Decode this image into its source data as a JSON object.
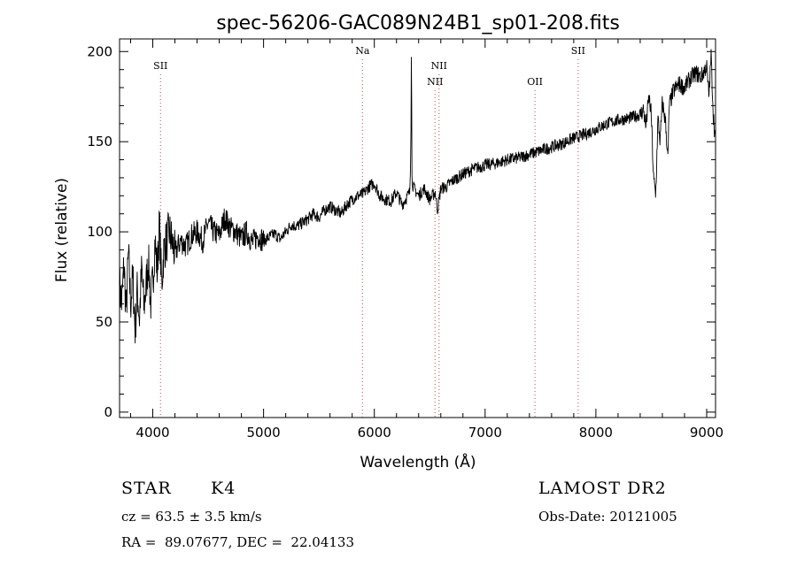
{
  "chart_data": {
    "type": "line",
    "title": "spec-56206-GAC089N24B1_sp01-208.fits",
    "xlabel": "Wavelength (Å)",
    "ylabel": "Flux (relative)",
    "xlim": [
      3700,
      9080
    ],
    "ylim": [
      -3,
      207
    ],
    "x_ticks": [
      4000,
      5000,
      6000,
      7000,
      8000,
      9000
    ],
    "y_ticks": [
      0,
      50,
      100,
      150,
      200
    ],
    "grid": false,
    "series": [
      {
        "x": [
          3700,
          3720,
          3740,
          3760,
          3780,
          3800,
          3820,
          3840,
          3860,
          3880,
          3900,
          3920,
          3940,
          3960,
          3980,
          4000,
          4020,
          4040,
          4060,
          4080,
          4100,
          4150,
          4200,
          4250,
          4300,
          4350,
          4400,
          4450,
          4500,
          4550,
          4600,
          4650,
          4700,
          4750,
          4800,
          4850,
          4900,
          4950,
          5000,
          5050,
          5100,
          5150,
          5200,
          5250,
          5300,
          5350,
          5400,
          5450,
          5500,
          5550,
          5600,
          5650,
          5700,
          5750,
          5800,
          5850,
          5900,
          5950,
          6000,
          6050,
          6100,
          6150,
          6200,
          6250,
          6300,
          6320,
          6330,
          6335,
          6340,
          6350,
          6400,
          6450,
          6500,
          6550,
          6570,
          6600,
          6650,
          6700,
          6800,
          6900,
          7000,
          7100,
          7200,
          7300,
          7400,
          7500,
          7600,
          7700,
          7800,
          7900,
          8000,
          8100,
          8200,
          8300,
          8400,
          8430,
          8450,
          8480,
          8500,
          8520,
          8540,
          8560,
          8580,
          8600,
          8630,
          8650,
          8662,
          8700,
          8750,
          8800,
          8850,
          8900,
          8950,
          9000,
          9020,
          9040,
          9060,
          9080
        ],
        "values": [
          70,
          60,
          82,
          55,
          88,
          60,
          75,
          45,
          68,
          52,
          80,
          58,
          70,
          85,
          60,
          72,
          95,
          78,
          105,
          70,
          90,
          100,
          88,
          95,
          92,
          98,
          100,
          95,
          105,
          100,
          98,
          108,
          102,
          100,
          96,
          100,
          94,
          98,
          95,
          97,
          99,
          96,
          100,
          104,
          103,
          105,
          107,
          110,
          108,
          112,
          114,
          112,
          110,
          115,
          118,
          120,
          121,
          125,
          127,
          120,
          118,
          117,
          122,
          115,
          120,
          122,
          150,
          197,
          130,
          125,
          120,
          124,
          118,
          122,
          112,
          124,
          125,
          128,
          132,
          135,
          137,
          138,
          140,
          141,
          143,
          145,
          147,
          149,
          152,
          154,
          157,
          160,
          162,
          163,
          165,
          168,
          158,
          175,
          165,
          130,
          120,
          163,
          150,
          172,
          160,
          140,
          170,
          178,
          182,
          180,
          185,
          188,
          186,
          192,
          175,
          198,
          165,
          150
        ]
      }
    ],
    "emission_lines": [
      {
        "label": "SII",
        "wavelength": 4070,
        "label_row": 1
      },
      {
        "label": "Na",
        "wavelength": 5893,
        "label_row": 0
      },
      {
        "label": "NII",
        "wavelength": 6548,
        "label_row": 2
      },
      {
        "label": "NII",
        "wavelength": 6584,
        "label_row": 1
      },
      {
        "label": "OII",
        "wavelength": 7450,
        "label_row": 2
      },
      {
        "label": "SII",
        "wavelength": 7840,
        "label_row": 0
      }
    ]
  },
  "footer": {
    "object_class": "STAR",
    "subclass": "K4",
    "survey": "LAMOST DR2",
    "redshift_line": "cz = 63.5 ± 3.5 km/s",
    "obs_date": "Obs-Date: 20121005",
    "coords": "RA =  89.07677, DEC =  22.04133"
  },
  "colors": {
    "spectrum": "#000000",
    "line_markers": "#cc6666",
    "axes": "#000000"
  }
}
